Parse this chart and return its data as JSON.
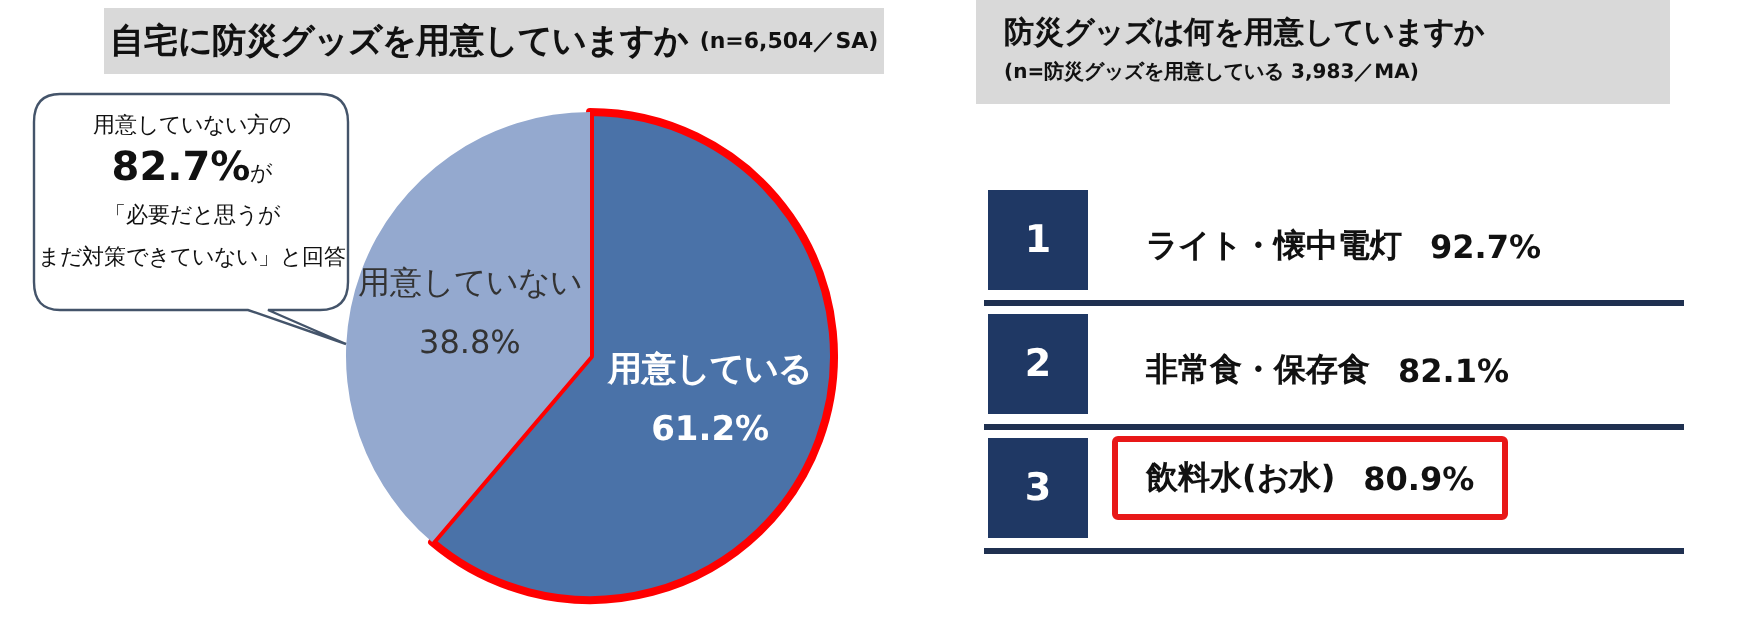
{
  "chart_data": [
    {
      "type": "pie",
      "title": "自宅に防災グッズを用意していますか",
      "subtitle": "(n=6,504／SA)",
      "categories": [
        "用意している",
        "用意していない"
      ],
      "values": [
        61.2,
        38.8
      ],
      "value_labels": [
        "61.2%",
        "38.8%"
      ],
      "colors": [
        "#4a72a8",
        "#94a9cf"
      ],
      "legend": false,
      "annotations": [
        "用意していない方の",
        "82.7%が",
        "「必要だと思うが",
        "まだ対策できていない」と回答"
      ]
    },
    {
      "type": "other",
      "title": "防災グッズは何を用意していますか",
      "subtitle": "(n=防災グッズを用意している 3,983／MA)",
      "categories": [
        "ライト・懐中電灯",
        "非常食・保存食",
        "飲料水(お水)"
      ],
      "values": [
        92.7,
        82.1,
        80.9
      ],
      "value_labels": [
        "92.7%",
        "82.1%",
        "80.9%"
      ],
      "annotations": [
        "1",
        "2",
        "3"
      ]
    }
  ]
}
